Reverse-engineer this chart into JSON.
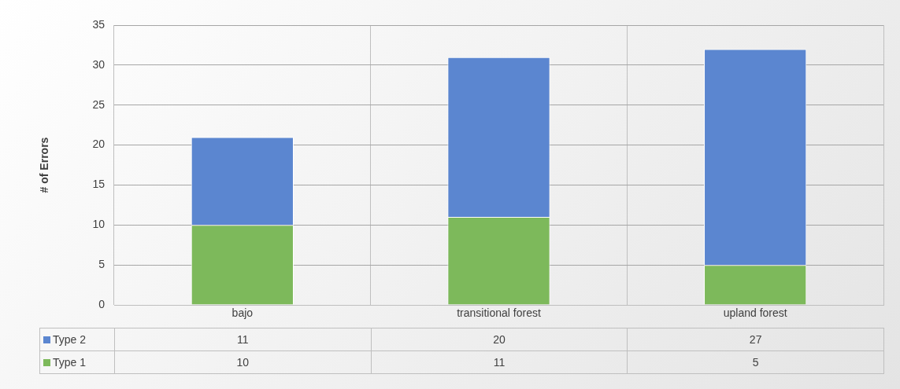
{
  "chart_data": {
    "type": "bar",
    "ylabel": "# of Errors",
    "categories": [
      "bajo",
      "transitional forest",
      "upland forest"
    ],
    "stacked": true,
    "series": [
      {
        "name": "Type 1",
        "color": "#7db95b",
        "values": [
          10,
          11,
          5
        ]
      },
      {
        "name": "Type 2",
        "color": "#5b86d0",
        "values": [
          11,
          20,
          27
        ]
      }
    ],
    "ylim": [
      0,
      35
    ],
    "yticks": [
      0,
      5,
      10,
      15,
      20,
      25,
      30,
      35
    ],
    "grid": "y",
    "legend": "bottom",
    "data_labels": true
  }
}
